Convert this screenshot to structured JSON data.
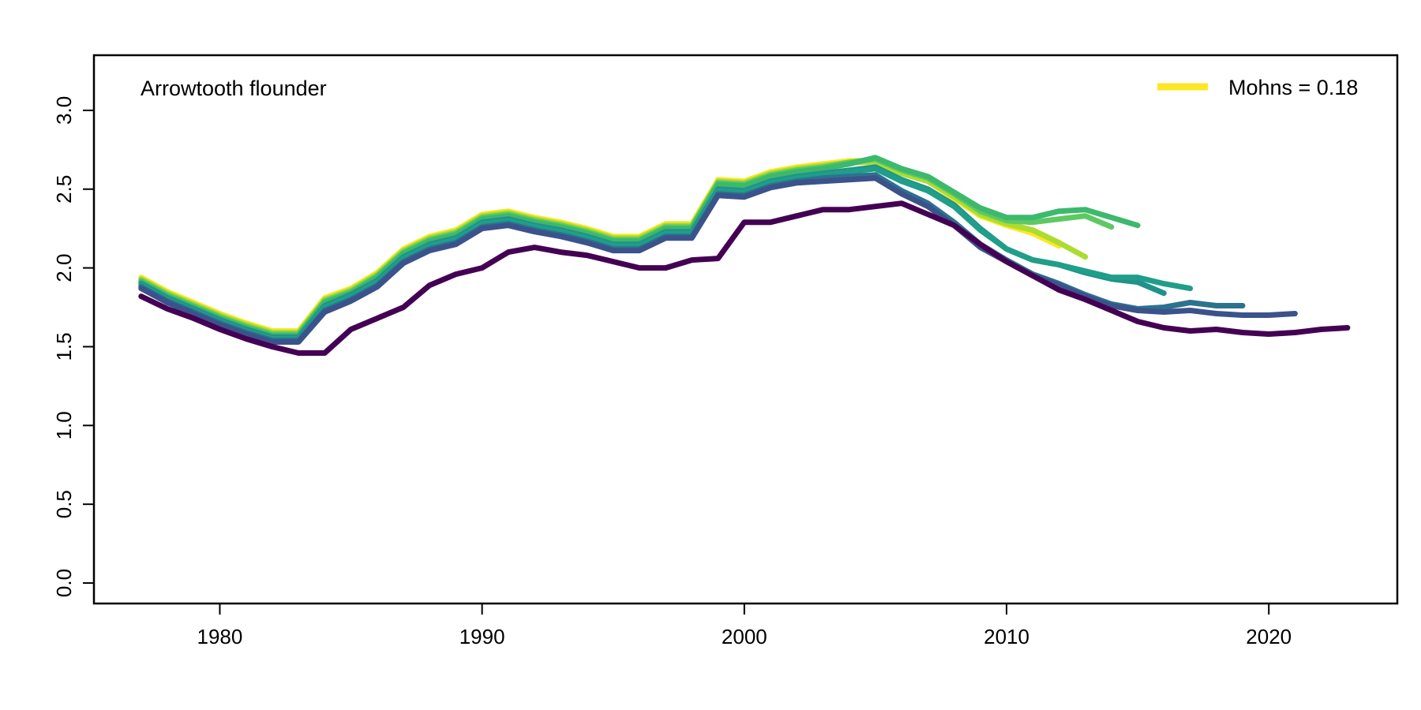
{
  "chart_data": {
    "type": "line",
    "title": "",
    "xlabel": "",
    "ylabel": "",
    "annotation": "Arrowtooth flounder",
    "legend": {
      "position": "top-right",
      "label": "Mohns = 0.18",
      "color": "#FDE725"
    },
    "xlim": [
      1975.2,
      2024.9
    ],
    "ylim": [
      -0.13,
      3.35
    ],
    "x_ticks": [
      1980,
      1990,
      2000,
      2010,
      2020
    ],
    "x_tick_labels": [
      "1980",
      "1990",
      "2000",
      "2010",
      "2020"
    ],
    "y_ticks": [
      0,
      0.5,
      1,
      1.5,
      2,
      2.5,
      3
    ],
    "y_tick_labels": [
      "0.0",
      "0.5",
      "1.0",
      "1.5",
      "2.0",
      "2.5",
      "3.0"
    ],
    "grid": false,
    "start_year": 1977,
    "series": [
      {
        "color": "#FDE725",
        "values": [
          1.94,
          1.85,
          1.78,
          1.71,
          1.65,
          1.6,
          1.6,
          1.81,
          1.87,
          1.97,
          2.12,
          2.2,
          2.24,
          2.34,
          2.36,
          2.32,
          2.29,
          2.25,
          2.2,
          2.2,
          2.28,
          2.28,
          2.56,
          2.55,
          2.61,
          2.64,
          2.66,
          2.68,
          2.68,
          2.61,
          2.55,
          2.44,
          2.33,
          2.27,
          2.22,
          2.14
        ]
      },
      {
        "color": "#ADDC30",
        "values": [
          1.93,
          1.84,
          1.77,
          1.7,
          1.64,
          1.59,
          1.59,
          1.8,
          1.86,
          1.96,
          2.11,
          2.19,
          2.23,
          2.33,
          2.35,
          2.31,
          2.28,
          2.24,
          2.19,
          2.19,
          2.27,
          2.27,
          2.55,
          2.54,
          2.6,
          2.63,
          2.65,
          2.67,
          2.67,
          2.6,
          2.55,
          2.45,
          2.34,
          2.28,
          2.24,
          2.16,
          2.07
        ]
      },
      {
        "color": "#5EC962",
        "values": [
          1.92,
          1.83,
          1.76,
          1.69,
          1.63,
          1.58,
          1.58,
          1.79,
          1.85,
          1.95,
          2.1,
          2.18,
          2.22,
          2.32,
          2.34,
          2.3,
          2.27,
          2.23,
          2.18,
          2.18,
          2.26,
          2.26,
          2.54,
          2.53,
          2.59,
          2.62,
          2.64,
          2.67,
          2.69,
          2.62,
          2.57,
          2.47,
          2.36,
          2.3,
          2.29,
          2.31,
          2.33,
          2.26
        ]
      },
      {
        "color": "#3CB96C",
        "values": [
          1.91,
          1.82,
          1.75,
          1.68,
          1.62,
          1.57,
          1.57,
          1.78,
          1.84,
          1.94,
          2.09,
          2.17,
          2.21,
          2.31,
          2.33,
          2.29,
          2.26,
          2.22,
          2.17,
          2.17,
          2.25,
          2.25,
          2.53,
          2.52,
          2.58,
          2.61,
          2.63,
          2.66,
          2.7,
          2.63,
          2.58,
          2.48,
          2.38,
          2.32,
          2.32,
          2.36,
          2.37,
          2.32,
          2.27
        ]
      },
      {
        "color": "#21918C",
        "values": [
          1.9,
          1.81,
          1.74,
          1.67,
          1.61,
          1.56,
          1.56,
          1.76,
          1.83,
          1.92,
          2.07,
          2.15,
          2.19,
          2.29,
          2.31,
          2.27,
          2.24,
          2.2,
          2.15,
          2.15,
          2.23,
          2.23,
          2.5,
          2.49,
          2.55,
          2.58,
          2.6,
          2.62,
          2.64,
          2.56,
          2.5,
          2.4,
          2.25,
          2.12,
          2.05,
          2.02,
          1.97,
          1.93,
          1.91,
          1.84
        ]
      },
      {
        "color": "#1F9E89",
        "values": [
          1.89,
          1.8,
          1.73,
          1.66,
          1.6,
          1.55,
          1.55,
          1.75,
          1.82,
          1.91,
          2.06,
          2.14,
          2.18,
          2.28,
          2.3,
          2.26,
          2.23,
          2.19,
          2.14,
          2.14,
          2.22,
          2.22,
          2.49,
          2.48,
          2.54,
          2.57,
          2.59,
          2.61,
          2.63,
          2.55,
          2.49,
          2.39,
          2.24,
          2.12,
          2.05,
          2.02,
          1.98,
          1.94,
          1.94,
          1.9,
          1.87
        ]
      },
      {
        "color": "#2C728E",
        "values": [
          1.88,
          1.79,
          1.72,
          1.65,
          1.59,
          1.54,
          1.54,
          1.73,
          1.8,
          1.89,
          2.04,
          2.12,
          2.16,
          2.26,
          2.28,
          2.24,
          2.21,
          2.17,
          2.12,
          2.12,
          2.2,
          2.2,
          2.47,
          2.46,
          2.52,
          2.55,
          2.57,
          2.58,
          2.59,
          2.49,
          2.41,
          2.29,
          2.15,
          2.05,
          1.96,
          1.9,
          1.83,
          1.77,
          1.74,
          1.75,
          1.78,
          1.76,
          1.76
        ]
      },
      {
        "color": "#3B528B",
        "values": [
          1.87,
          1.78,
          1.71,
          1.64,
          1.58,
          1.53,
          1.53,
          1.72,
          1.79,
          1.88,
          2.03,
          2.11,
          2.15,
          2.25,
          2.27,
          2.23,
          2.2,
          2.16,
          2.11,
          2.11,
          2.19,
          2.19,
          2.46,
          2.45,
          2.51,
          2.54,
          2.55,
          2.56,
          2.57,
          2.47,
          2.39,
          2.27,
          2.13,
          2.04,
          1.95,
          1.89,
          1.82,
          1.76,
          1.73,
          1.72,
          1.73,
          1.71,
          1.7,
          1.7,
          1.71
        ]
      },
      {
        "color": "#440154",
        "values": [
          1.82,
          1.74,
          1.68,
          1.61,
          1.55,
          1.5,
          1.46,
          1.46,
          1.61,
          1.68,
          1.75,
          1.89,
          1.96,
          2.0,
          2.1,
          2.13,
          2.1,
          2.08,
          2.04,
          2.0,
          2.0,
          2.05,
          2.06,
          2.29,
          2.29,
          2.33,
          2.37,
          2.37,
          2.39,
          2.41,
          2.34,
          2.27,
          2.15,
          2.04,
          1.95,
          1.86,
          1.8,
          1.73,
          1.66,
          1.62,
          1.6,
          1.61,
          1.59,
          1.58,
          1.59,
          1.61,
          1.62
        ]
      }
    ]
  }
}
